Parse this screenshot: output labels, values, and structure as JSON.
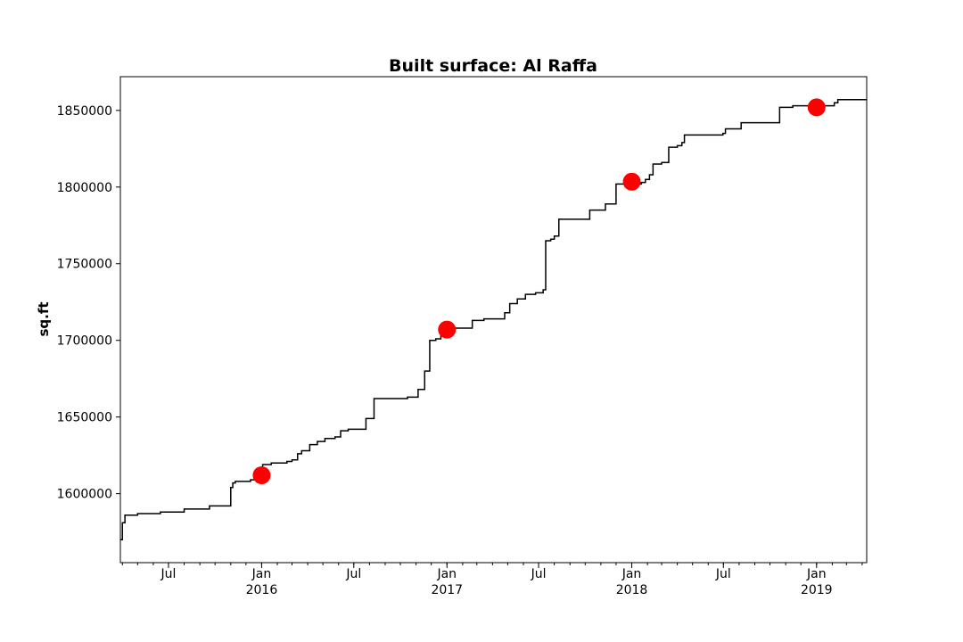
{
  "chart_data": {
    "type": "line",
    "title": "Built surface: Al Raffa",
    "xlabel": "",
    "ylabel": "sq.ft",
    "xlim": [
      "2015-03-28",
      "2019-04-10"
    ],
    "ylim": [
      1555000,
      1872000
    ],
    "yticks": [
      1600000,
      1650000,
      1700000,
      1750000,
      1800000,
      1850000
    ],
    "xticks": [
      {
        "date": "2015-07-01",
        "label": "Jul",
        "sublabel": ""
      },
      {
        "date": "2016-01-01",
        "label": "Jan",
        "sublabel": "2016"
      },
      {
        "date": "2016-07-01",
        "label": "Jul",
        "sublabel": ""
      },
      {
        "date": "2017-01-01",
        "label": "Jan",
        "sublabel": "2017"
      },
      {
        "date": "2017-07-01",
        "label": "Jul",
        "sublabel": ""
      },
      {
        "date": "2018-01-01",
        "label": "Jan",
        "sublabel": "2018"
      },
      {
        "date": "2018-07-01",
        "label": "Jul",
        "sublabel": ""
      },
      {
        "date": "2019-01-01",
        "label": "Jan",
        "sublabel": "2019"
      }
    ],
    "grid": false,
    "series": [
      {
        "style": "step",
        "color": "#000000",
        "points": [
          [
            "2015-03-28",
            1570000
          ],
          [
            "2015-04-01",
            1581000
          ],
          [
            "2015-04-06",
            1586000
          ],
          [
            "2015-05-01",
            1587000
          ],
          [
            "2015-06-15",
            1588000
          ],
          [
            "2015-08-01",
            1590000
          ],
          [
            "2015-09-20",
            1592000
          ],
          [
            "2015-11-01",
            1604000
          ],
          [
            "2015-11-05",
            1607000
          ],
          [
            "2015-11-10",
            1608000
          ],
          [
            "2015-12-10",
            1609000
          ],
          [
            "2015-12-25",
            1611000
          ],
          [
            "2016-01-03",
            1619000
          ],
          [
            "2016-01-20",
            1620000
          ],
          [
            "2016-02-20",
            1621000
          ],
          [
            "2016-03-01",
            1622000
          ],
          [
            "2016-03-12",
            1626000
          ],
          [
            "2016-03-20",
            1628000
          ],
          [
            "2016-04-05",
            1632000
          ],
          [
            "2016-04-20",
            1634000
          ],
          [
            "2016-05-05",
            1636000
          ],
          [
            "2016-05-25",
            1637000
          ],
          [
            "2016-06-05",
            1641000
          ],
          [
            "2016-06-20",
            1642000
          ],
          [
            "2016-07-25",
            1649000
          ],
          [
            "2016-08-10",
            1662000
          ],
          [
            "2016-10-15",
            1663000
          ],
          [
            "2016-11-05",
            1668000
          ],
          [
            "2016-11-18",
            1680000
          ],
          [
            "2016-11-28",
            1700000
          ],
          [
            "2016-12-10",
            1701000
          ],
          [
            "2016-12-20",
            1703000
          ],
          [
            "2017-01-01",
            1705000
          ],
          [
            "2017-01-15",
            1708000
          ],
          [
            "2017-02-20",
            1713000
          ],
          [
            "2017-03-15",
            1714000
          ],
          [
            "2017-04-25",
            1718000
          ],
          [
            "2017-05-05",
            1724000
          ],
          [
            "2017-05-20",
            1727000
          ],
          [
            "2017-06-05",
            1730000
          ],
          [
            "2017-06-25",
            1731000
          ],
          [
            "2017-07-10",
            1733000
          ],
          [
            "2017-07-15",
            1765000
          ],
          [
            "2017-07-25",
            1766000
          ],
          [
            "2017-08-01",
            1768000
          ],
          [
            "2017-08-10",
            1779000
          ],
          [
            "2017-09-20",
            1779000
          ],
          [
            "2017-10-10",
            1785000
          ],
          [
            "2017-11-10",
            1789000
          ],
          [
            "2017-12-01",
            1802000
          ],
          [
            "2018-01-20",
            1803000
          ],
          [
            "2018-01-28",
            1805000
          ],
          [
            "2018-02-05",
            1808000
          ],
          [
            "2018-02-12",
            1815000
          ],
          [
            "2018-03-01",
            1816000
          ],
          [
            "2018-03-15",
            1826000
          ],
          [
            "2018-04-01",
            1827000
          ],
          [
            "2018-04-10",
            1829000
          ],
          [
            "2018-04-15",
            1834000
          ],
          [
            "2018-06-30",
            1835000
          ],
          [
            "2018-07-05",
            1838000
          ],
          [
            "2018-08-05",
            1842000
          ],
          [
            "2018-10-20",
            1852000
          ],
          [
            "2018-11-15",
            1853000
          ],
          [
            "2019-02-01",
            1853000
          ],
          [
            "2019-02-05",
            1855000
          ],
          [
            "2019-02-12",
            1857000
          ],
          [
            "2019-04-10",
            1857000
          ]
        ]
      },
      {
        "style": "markers",
        "color": "#ff0000",
        "points": [
          [
            "2016-01-01",
            1612000
          ],
          [
            "2017-01-01",
            1707000
          ],
          [
            "2018-01-01",
            1803500
          ],
          [
            "2019-01-01",
            1852000
          ]
        ]
      }
    ]
  }
}
